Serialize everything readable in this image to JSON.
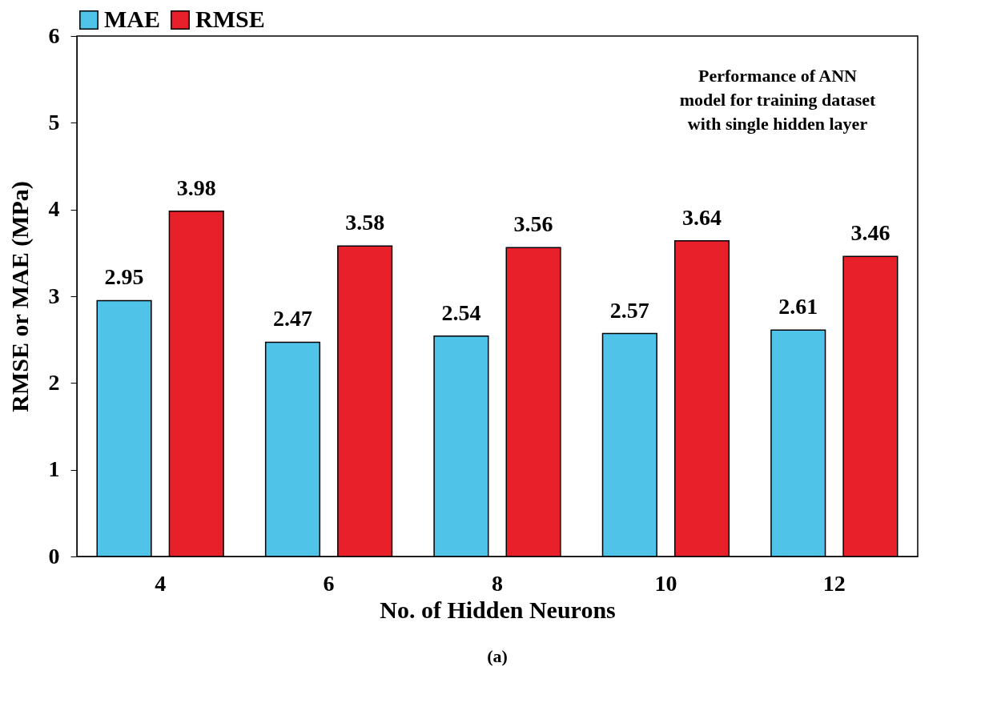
{
  "chart_data": {
    "type": "bar",
    "xlabel": "No. of Hidden Neurons",
    "ylabel": "RMSE or MAE (MPa)",
    "categories": [
      "4",
      "6",
      "8",
      "10",
      "12"
    ],
    "series": [
      {
        "name": "MAE",
        "color": "#4fc3e8",
        "values": [
          2.95,
          2.47,
          2.54,
          2.57,
          2.61
        ]
      },
      {
        "name": "RMSE",
        "color": "#e8202a",
        "values": [
          3.98,
          3.58,
          3.56,
          3.64,
          3.46
        ]
      }
    ],
    "ylim": [
      0,
      6
    ],
    "yticks": [
      0,
      1,
      2,
      3,
      4,
      5,
      6
    ],
    "grid": false,
    "legend": "top",
    "data_labels": true,
    "annotations": [
      "Performance of ANN\nmodel for training dataset\nwith single hidden layer",
      "(a)"
    ]
  }
}
